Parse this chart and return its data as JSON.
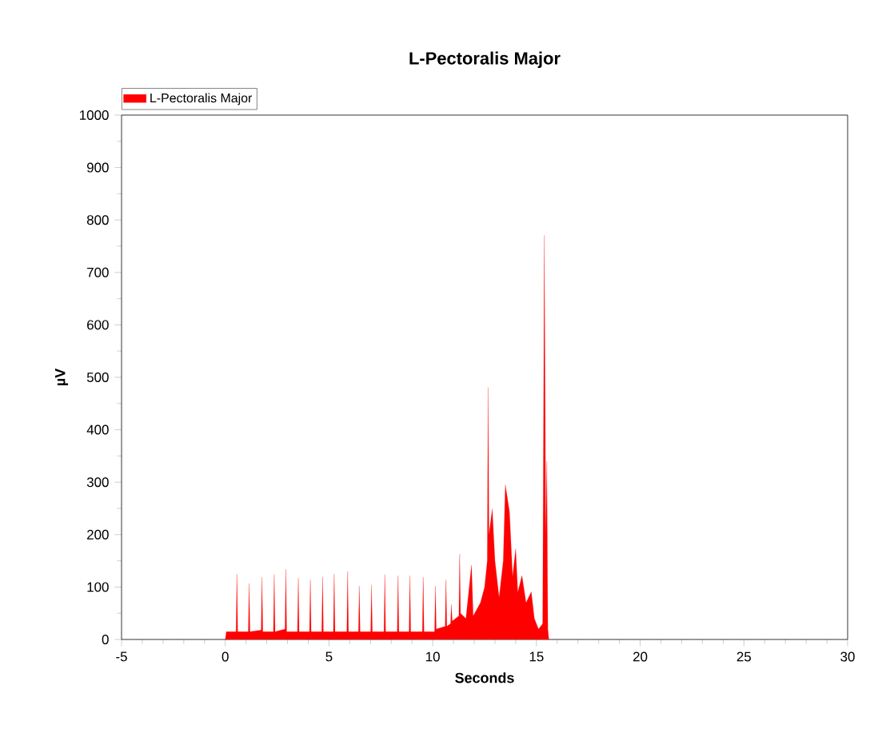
{
  "chart_data": {
    "type": "area",
    "title": "L-Pectoralis Major",
    "xlabel": "Seconds",
    "ylabel": "µV",
    "legend": "top left",
    "xlim": [
      -5,
      30
    ],
    "ylim": [
      0,
      1000
    ],
    "xticks": [
      -5,
      0,
      5,
      10,
      15,
      20,
      25,
      30
    ],
    "yticks": [
      0,
      100,
      200,
      300,
      400,
      500,
      600,
      700,
      800,
      900,
      1000
    ],
    "series": [
      {
        "name": "L-Pectoralis Major",
        "color": "#ff0000",
        "x": [
          0,
          0.05,
          0.52,
          0.56,
          0.6,
          1.11,
          1.15,
          1.19,
          1.73,
          1.77,
          1.81,
          2.32,
          2.36,
          2.4,
          2.88,
          2.92,
          2.96,
          3.48,
          3.52,
          3.56,
          4.06,
          4.1,
          4.14,
          4.65,
          4.69,
          4.73,
          5.21,
          5.25,
          5.29,
          5.86,
          5.9,
          5.94,
          6.42,
          6.46,
          6.5,
          7.01,
          7.05,
          7.09,
          7.65,
          7.69,
          7.73,
          8.29,
          8.33,
          8.37,
          8.86,
          8.9,
          8.94,
          9.5,
          9.54,
          9.58,
          10.09,
          10.13,
          10.17,
          10.6,
          10.64,
          10.68,
          10.86,
          10.9,
          10.94,
          11.26,
          11.3,
          11.34,
          11.6,
          11.87,
          11.95,
          12.3,
          12.5,
          12.63,
          12.67,
          12.71,
          12.87,
          13.0,
          13.2,
          13.4,
          13.5,
          13.7,
          13.85,
          14.0,
          14.1,
          14.3,
          14.5,
          14.75,
          14.9,
          15.1,
          15.3,
          15.38,
          15.45,
          15.5,
          15.55,
          15.6
        ],
        "values": [
          0,
          15,
          15,
          125,
          15,
          15,
          107,
          15,
          18,
          119,
          15,
          15,
          124,
          15,
          20,
          134,
          15,
          15,
          117,
          15,
          15,
          114,
          15,
          15,
          120,
          15,
          15,
          125,
          15,
          15,
          130,
          15,
          15,
          102,
          15,
          15,
          104,
          15,
          15,
          124,
          15,
          15,
          122,
          15,
          15,
          122,
          15,
          15,
          119,
          15,
          15,
          102,
          20,
          25,
          114,
          25,
          30,
          67,
          35,
          45,
          163,
          50,
          40,
          142,
          45,
          70,
          100,
          150,
          481,
          200,
          249,
          150,
          80,
          150,
          295,
          244,
          120,
          173,
          90,
          122,
          70,
          91,
          40,
          20,
          30,
          771,
          200,
          340,
          20,
          0
        ]
      }
    ]
  }
}
